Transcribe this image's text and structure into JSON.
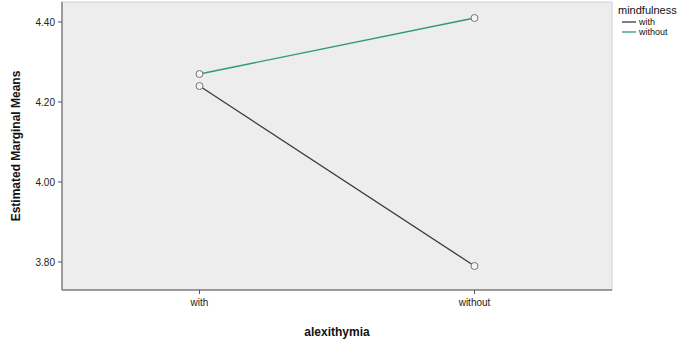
{
  "chart_data": {
    "type": "line",
    "x_label": "alexithymia",
    "y_label": "Estimated Marginal Means",
    "categories": [
      "with",
      "without"
    ],
    "series": [
      {
        "name": "with",
        "color": "#3a3a3a",
        "values": [
          4.24,
          3.79
        ],
        "marker": "circle",
        "line_style": "solid"
      },
      {
        "name": "without",
        "color": "#2e9a72",
        "values": [
          4.27,
          4.41
        ],
        "marker": "circle",
        "line_style": "solid"
      }
    ],
    "legend_title": "mindfulness",
    "legend": "top-right",
    "ylim": [
      3.73,
      4.45
    ],
    "yticks": [
      {
        "value": 3.8,
        "label": "3.80"
      },
      {
        "value": 4.0,
        "label": "4.00"
      },
      {
        "value": 4.2,
        "label": "4.20"
      },
      {
        "value": 4.4,
        "label": "4.40"
      }
    ],
    "grid": false
  }
}
